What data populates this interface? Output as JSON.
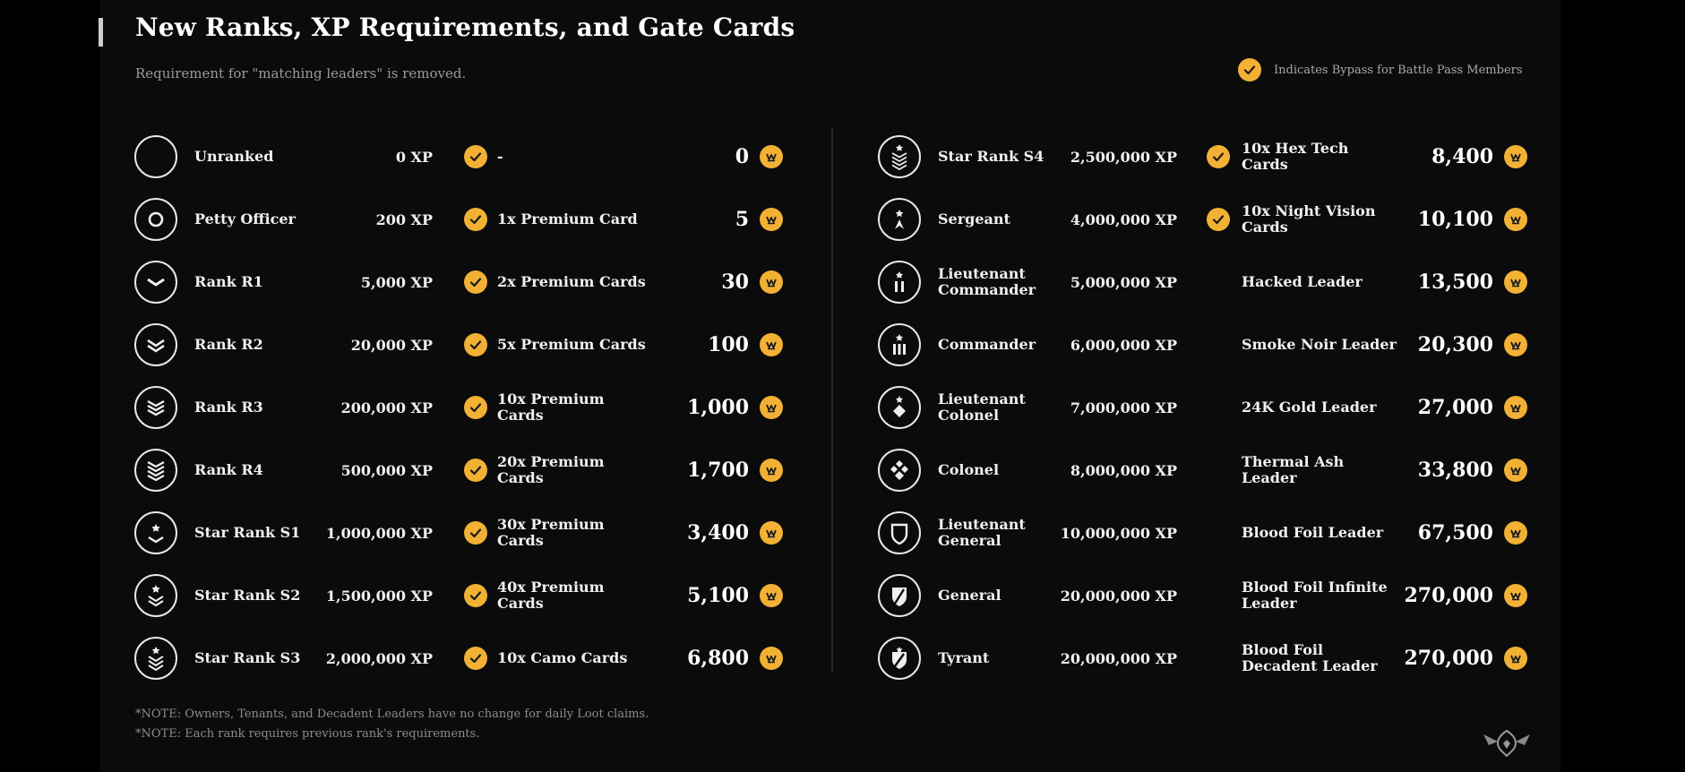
{
  "header": {
    "title": "New Ranks, XP Requirements, and Gate Cards",
    "subtitle": "Requirement for \"matching leaders\" is removed.",
    "legend": "Indicates Bypass for Battle Pass Members"
  },
  "colors": {
    "accent": "#f2b134",
    "background": "#0b0b0b"
  },
  "ranks_left": [
    {
      "name": "Unranked",
      "xp": "0 XP",
      "bypass": true,
      "gate": "-",
      "amount": "0",
      "icon": "empty-circle-icon"
    },
    {
      "name": "Petty Officer",
      "xp": "200 XP",
      "bypass": true,
      "gate": "1x Premium Card",
      "amount": "5",
      "icon": "ring-icon"
    },
    {
      "name": "Rank R1",
      "xp": "5,000 XP",
      "bypass": true,
      "gate": "2x Premium Cards",
      "amount": "30",
      "icon": "chevron-1-icon"
    },
    {
      "name": "Rank R2",
      "xp": "20,000 XP",
      "bypass": true,
      "gate": "5x Premium Cards",
      "amount": "100",
      "icon": "chevron-2-icon"
    },
    {
      "name": "Rank R3",
      "xp": "200,000 XP",
      "bypass": true,
      "gate": "10x Premium Cards",
      "amount": "1,000",
      "icon": "chevron-3-icon"
    },
    {
      "name": "Rank R4",
      "xp": "500,000 XP",
      "bypass": true,
      "gate": "20x Premium Cards",
      "amount": "1,700",
      "icon": "chevron-4-icon"
    },
    {
      "name": "Star Rank S1",
      "xp": "1,000,000 XP",
      "bypass": true,
      "gate": "30x Premium Cards",
      "amount": "3,400",
      "icon": "star-chevron-1-icon"
    },
    {
      "name": "Star Rank S2",
      "xp": "1,500,000 XP",
      "bypass": true,
      "gate": "40x Premium Cards",
      "amount": "5,100",
      "icon": "star-chevron-2-icon"
    },
    {
      "name": "Star Rank S3",
      "xp": "2,000,000 XP",
      "bypass": true,
      "gate": "10x Camo Cards",
      "amount": "6,800",
      "icon": "star-chevron-3-icon"
    }
  ],
  "ranks_right": [
    {
      "name": "Star Rank S4",
      "xp": "2,500,000 XP",
      "bypass": true,
      "gate": "10x Hex Tech Cards",
      "amount": "8,400",
      "icon": "star-chevron-4-icon"
    },
    {
      "name": "Sergeant",
      "xp": "4,000,000 XP",
      "bypass": true,
      "gate": "10x Night Vision Cards",
      "amount": "10,100",
      "icon": "sergeant-icon"
    },
    {
      "name": "Lieutenant Commander",
      "xp": "5,000,000 XP",
      "bypass": false,
      "gate": "Hacked Leader",
      "amount": "13,500",
      "icon": "bars-2-icon"
    },
    {
      "name": "Commander",
      "xp": "6,000,000 XP",
      "bypass": false,
      "gate": "Smoke Noir Leader",
      "amount": "20,300",
      "icon": "bars-3-icon"
    },
    {
      "name": "Lieutenant Colonel",
      "xp": "7,000,000 XP",
      "bypass": false,
      "gate": "24K Gold Leader",
      "amount": "27,000",
      "icon": "diamond-icon"
    },
    {
      "name": "Colonel",
      "xp": "8,000,000 XP",
      "bypass": false,
      "gate": "Thermal Ash Leader",
      "amount": "33,800",
      "icon": "diamonds-icon"
    },
    {
      "name": "Lieutenant General",
      "xp": "10,000,000 XP",
      "bypass": false,
      "gate": "Blood Foil Leader",
      "amount": "67,500",
      "icon": "shield-icon"
    },
    {
      "name": "General",
      "xp": "20,000,000 XP",
      "bypass": false,
      "gate": "Blood Foil Infinite Leader",
      "amount": "270,000",
      "icon": "general-icon"
    },
    {
      "name": "Tyrant",
      "xp": "20,000,000 XP",
      "bypass": false,
      "gate": "Blood Foil Decadent Leader",
      "amount": "270,000",
      "icon": "tyrant-icon"
    }
  ],
  "notes": [
    "*NOTE: Owners, Tenants, and Decadent Leaders have no change for daily Loot claims.",
    "*NOTE: Each rank requires previous rank's requirements."
  ]
}
